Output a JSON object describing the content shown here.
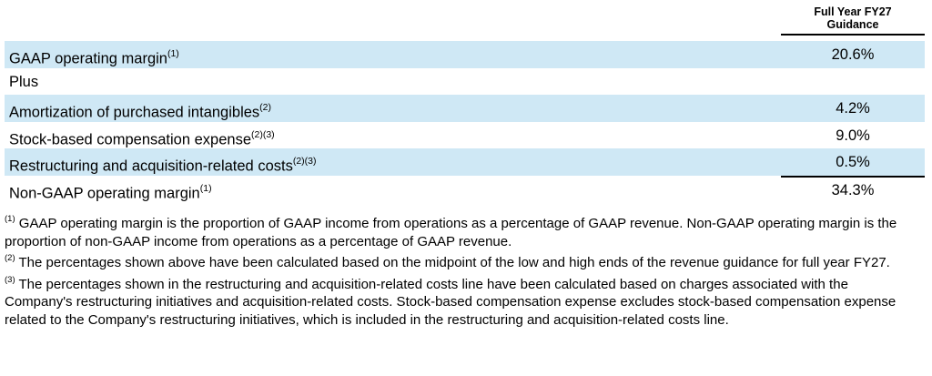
{
  "header": {
    "line1": "Full Year FY27",
    "line2": "Guidance"
  },
  "rows": [
    {
      "label": "GAAP operating margin",
      "sup": "(1)",
      "value": "20.6%",
      "shaded": true
    },
    {
      "label": "Plus",
      "sup": "",
      "value": "",
      "shaded": false
    },
    {
      "label": "Amortization of purchased intangibles",
      "sup": "(2)",
      "value": "4.2%",
      "shaded": true
    },
    {
      "label": "Stock-based compensation expense",
      "sup": "(2)(3)",
      "value": "9.0%",
      "shaded": false
    },
    {
      "label": "Restructuring and acquisition-related costs",
      "sup": "(2)(3)",
      "value": "0.5%",
      "shaded": true
    },
    {
      "label": "Non-GAAP operating margin",
      "sup": "(1)",
      "value": "34.3%",
      "shaded": false
    }
  ],
  "footnotes": [
    {
      "marker": "(1)",
      "text": " GAAP operating margin is the proportion of GAAP income from operations as a percentage of GAAP revenue. Non-GAAP operating margin is the proportion of non-GAAP income from operations as a percentage of GAAP revenue."
    },
    {
      "marker": "(2)",
      "text": " The percentages shown above have been calculated based on the midpoint of the low and high ends of the revenue guidance for full year FY27."
    },
    {
      "marker": "(3)",
      "text": " The percentages shown in the restructuring and acquisition-related costs line have been calculated based on charges associated with the Company's restructuring initiatives and acquisition-related costs. Stock-based compensation expense excludes stock-based compensation expense related to the Company's restructuring initiatives, which is included in the restructuring and acquisition-related costs line."
    }
  ],
  "colors": {
    "row_shade": "#cfe8f5",
    "rule": "#000000"
  }
}
